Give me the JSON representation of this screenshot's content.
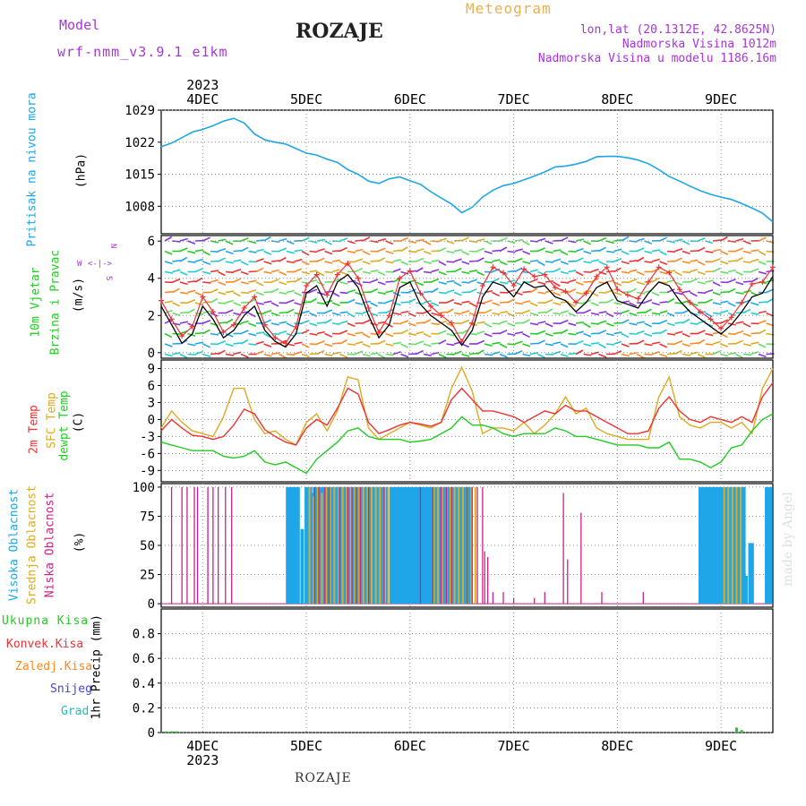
{
  "header": {
    "model_label": "Model",
    "model_name": "wrf-nmm_v3.9.1  e1km",
    "title": "ROZAJE",
    "meteogram_label": "Meteogram",
    "lonlat": "lon,lat (20.1312E, 42.8625N)",
    "elevation": "Nadmorska Visina 1012m",
    "model_elevation": "Nadmorska Visina u modelu 1186.16m"
  },
  "footer": {
    "station": "ROZAJE",
    "watermark": "made by Angel"
  },
  "colors": {
    "pressure": "#1fa6e8",
    "wind_label": "#22cc22",
    "t2m": "#ee3333",
    "sfc": "#ddaa22",
    "dewpt": "#22cc22",
    "high_cloud": "#1fa6e8",
    "mid_cloud": "#ddaa22",
    "low_cloud": "#cc2288",
    "total_precip": "#22cc22",
    "conv_precip": "#ee3333",
    "frz_precip": "#ff8822",
    "snow": "#4444dd",
    "grad": "#22bbbb",
    "purple": "#aa33dd",
    "orange": "#e8b050"
  },
  "chart_data": [
    {
      "panel": "pressure",
      "type": "line",
      "top_year": "2023",
      "top_days": [
        "4DEC",
        "5DEC",
        "6DEC",
        "7DEC",
        "8DEC",
        "9DEC"
      ],
      "ylabel_1": "Pritisak na nivou mora",
      "unit": "(hPa)",
      "ylim": [
        1002,
        1029
      ],
      "yticks": [
        "1008",
        "1015",
        "1022",
        "1029"
      ],
      "x": [
        3.6,
        3.7,
        3.8,
        3.9,
        4.0,
        4.1,
        4.2,
        4.3,
        4.4,
        4.5,
        4.6,
        4.7,
        4.8,
        4.9,
        5.0,
        5.1,
        5.2,
        5.3,
        5.4,
        5.5,
        5.6,
        5.7,
        5.8,
        5.9,
        6.0,
        6.1,
        6.2,
        6.3,
        6.4,
        6.5,
        6.6,
        6.7,
        6.8,
        6.9,
        7.0,
        7.1,
        7.2,
        7.3,
        7.4,
        7.5,
        7.6,
        7.7,
        7.8,
        7.9,
        8.0,
        8.1,
        8.2,
        8.3,
        8.4,
        8.5,
        8.6,
        8.7,
        8.8,
        8.9,
        9.0,
        9.1,
        9.2,
        9.3,
        9.4,
        9.5
      ],
      "values": [
        1021,
        1021.8,
        1023,
        1024.2,
        1024.8,
        1025.6,
        1026.6,
        1027.2,
        1026.2,
        1023.8,
        1022.5,
        1022,
        1021.6,
        1020.6,
        1019.6,
        1019.2,
        1018.3,
        1017.6,
        1016,
        1015,
        1013.5,
        1013,
        1014,
        1014.4,
        1013.6,
        1012.8,
        1011.2,
        1009.8,
        1008.5,
        1006.6,
        1007.8,
        1010,
        1011.5,
        1012.5,
        1013,
        1013.8,
        1014.6,
        1015.5,
        1016.6,
        1016.8,
        1017.2,
        1017.8,
        1018.8,
        1018.9,
        1018.9,
        1018.6,
        1018.1,
        1017.3,
        1016,
        1014.5,
        1013.5,
        1012.4,
        1011.4,
        1010.6,
        1010,
        1009.5,
        1008.6,
        1007.6,
        1006.5,
        1004.6
      ]
    },
    {
      "panel": "wind",
      "type": "line",
      "ylabel_1": "10m Vjetar",
      "ylabel_2": "Brzina i Pravac",
      "unit": "(m/s)",
      "compass": [
        "N",
        "W",
        "E",
        "S"
      ],
      "ylim": [
        -0.3,
        6.3
      ],
      "yticks": [
        "0",
        "2",
        "4",
        "6"
      ],
      "x": [
        3.6,
        3.7,
        3.8,
        3.9,
        4.0,
        4.1,
        4.2,
        4.3,
        4.4,
        4.5,
        4.6,
        4.7,
        4.8,
        4.9,
        5.0,
        5.1,
        5.2,
        5.3,
        5.4,
        5.5,
        5.6,
        5.7,
        5.8,
        5.9,
        6.0,
        6.1,
        6.2,
        6.3,
        6.4,
        6.5,
        6.6,
        6.7,
        6.8,
        6.9,
        7.0,
        7.1,
        7.2,
        7.3,
        7.4,
        7.5,
        7.6,
        7.7,
        7.8,
        7.9,
        8.0,
        8.1,
        8.2,
        8.3,
        8.4,
        8.5,
        8.6,
        8.7,
        8.8,
        8.9,
        9.0,
        9.1,
        9.2,
        9.3,
        9.4,
        9.5
      ],
      "series": [
        {
          "values": [
            2.5,
            1.5,
            0.5,
            1.0,
            2.5,
            1.8,
            0.8,
            1.2,
            2.0,
            2.5,
            1.2,
            0.6,
            0.3,
            1.0,
            3.2,
            3.6,
            2.5,
            3.8,
            4.2,
            3.5,
            2.0,
            0.8,
            1.5,
            3.5,
            3.8,
            2.6,
            2.0,
            1.6,
            1.2,
            0.4,
            1.2,
            3.0,
            3.8,
            3.6,
            3.0,
            3.8,
            3.5,
            3.6,
            3.0,
            2.8,
            2.2,
            2.7,
            3.5,
            3.8,
            2.8,
            2.6,
            2.4,
            3.2,
            3.8,
            3.6,
            2.8,
            2.2,
            1.8,
            1.4,
            1.0,
            1.5,
            2.2,
            3.0,
            3.2,
            4.1
          ]
        },
        {
          "values": [
            2.8,
            1.8,
            0.9,
            1.4,
            3.0,
            2.2,
            1.1,
            1.5,
            2.4,
            3.0,
            1.5,
            0.8,
            0.5,
            1.4,
            3.6,
            4.2,
            3.1,
            4.2,
            4.8,
            4.0,
            2.4,
            1.1,
            2.0,
            4.0,
            4.4,
            3.2,
            2.5,
            2.0,
            1.6,
            0.6,
            1.6,
            3.6,
            4.6,
            4.3,
            3.6,
            4.5,
            4.1,
            4.2,
            3.5,
            3.3,
            2.7,
            3.2,
            4.1,
            4.6,
            3.4,
            3.1,
            2.9,
            3.8,
            4.6,
            4.3,
            3.4,
            2.7,
            2.2,
            1.8,
            1.3,
            1.9,
            2.7,
            3.7,
            3.8,
            4.6
          ]
        }
      ]
    },
    {
      "panel": "temperature",
      "type": "line",
      "ylabel_1": "2m Temp",
      "ylabel_2": "SFC Temp",
      "ylabel_3": "dewpt Temp",
      "unit": "(C)",
      "ylim": [
        -11,
        10.5
      ],
      "yticks": [
        "-9",
        "-6",
        "-3",
        "0",
        "3",
        "6",
        "9"
      ],
      "x": [
        3.6,
        3.7,
        3.8,
        3.9,
        4.0,
        4.1,
        4.2,
        4.3,
        4.4,
        4.5,
        4.6,
        4.7,
        4.8,
        4.9,
        5.0,
        5.1,
        5.2,
        5.3,
        5.4,
        5.5,
        5.6,
        5.7,
        5.8,
        5.9,
        6.0,
        6.1,
        6.2,
        6.3,
        6.4,
        6.5,
        6.6,
        6.7,
        6.8,
        6.9,
        7.0,
        7.1,
        7.2,
        7.3,
        7.4,
        7.5,
        7.6,
        7.7,
        7.8,
        7.9,
        8.0,
        8.1,
        8.2,
        8.3,
        8.4,
        8.5,
        8.6,
        8.7,
        8.8,
        8.9,
        9.0,
        9.1,
        9.2,
        9.3,
        9.4,
        9.5
      ],
      "series": [
        {
          "name": "2m Temp",
          "values": [
            -2.0,
            0.0,
            -1.5,
            -2.8,
            -3.0,
            -3.5,
            -3.0,
            -1.0,
            1.8,
            1.0,
            -1.8,
            -3.0,
            -4.0,
            -4.5,
            -1.5,
            0.0,
            -1.0,
            2.0,
            5.5,
            4.5,
            -0.5,
            -2.5,
            -1.8,
            -1.0,
            -0.5,
            -0.8,
            -1.2,
            -0.5,
            3.5,
            5.5,
            3.5,
            1.5,
            1.5,
            1.0,
            0.5,
            -0.5,
            0.5,
            1.5,
            1.0,
            2.5,
            1.5,
            1.5,
            0.5,
            -0.5,
            -1.5,
            -2.5,
            -2.5,
            -2.0,
            2.0,
            4.0,
            1.5,
            0.0,
            -0.5,
            0.5,
            0.0,
            -0.5,
            0.5,
            -0.5,
            4.0,
            6.5
          ]
        },
        {
          "name": "SFC Temp",
          "values": [
            -1.5,
            1.5,
            -0.5,
            -2.0,
            -2.5,
            -3.0,
            0.5,
            5.5,
            5.5,
            0.0,
            -2.5,
            -2.0,
            -3.5,
            -4.5,
            -0.5,
            1.0,
            -2.0,
            1.5,
            7.5,
            7.0,
            -1.5,
            -3.5,
            -2.5,
            -1.5,
            -0.5,
            -1.0,
            -1.5,
            -0.5,
            5.5,
            9.2,
            5.0,
            -2.5,
            -1.5,
            -1.5,
            -2.0,
            -0.5,
            -2.5,
            -1.0,
            1.0,
            4.0,
            1.0,
            2.0,
            -1.5,
            -2.5,
            -3.0,
            -3.5,
            -3.5,
            -3.5,
            4.0,
            7.5,
            0.5,
            -1.0,
            -1.5,
            -0.5,
            -0.5,
            -1.5,
            -0.5,
            -2.5,
            5.5,
            9.0
          ]
        },
        {
          "name": "dewpt Temp",
          "values": [
            -4.0,
            -4.5,
            -5.0,
            -5.5,
            -5.5,
            -5.5,
            -6.5,
            -6.8,
            -6.5,
            -5.5,
            -7.5,
            -8.0,
            -7.5,
            -8.5,
            -9.5,
            -7.0,
            -5.5,
            -4.0,
            -2.0,
            -1.5,
            -3.0,
            -3.5,
            -3.5,
            -3.5,
            -4.0,
            -3.8,
            -3.5,
            -2.5,
            -1.5,
            0.5,
            -1.0,
            -1.0,
            -1.5,
            -2.5,
            -3.0,
            -2.5,
            -2.5,
            -2.5,
            -1.5,
            -2.0,
            -3.0,
            -3.0,
            -3.5,
            -4.0,
            -4.5,
            -4.5,
            -4.5,
            -5.0,
            -5.0,
            -4.0,
            -7.0,
            -7.0,
            -7.5,
            -8.5,
            -7.5,
            -5.0,
            -4.5,
            -2.0,
            0.0,
            1.0
          ]
        }
      ]
    },
    {
      "panel": "cloud",
      "type": "bar",
      "ylabel_1": "Visoka Oblacnost",
      "ylabel_2": "Srednja Oblacnost",
      "ylabel_3": "Niska Oblacnost",
      "unit": "(%)",
      "ylim": [
        -3,
        103
      ],
      "yticks": [
        "0",
        "25",
        "50",
        "75",
        "100"
      ],
      "series": [
        {
          "name": "Visoka Oblacnost",
          "x": [
            4.82,
            4.84,
            4.86,
            4.88,
            4.9,
            4.92,
            4.94,
            4.96,
            5.0,
            5.02,
            5.04,
            5.06,
            5.08,
            5.1,
            5.12,
            5.14,
            5.16,
            5.18,
            5.2,
            5.22,
            5.24,
            5.26,
            5.28,
            5.3,
            5.32,
            5.34,
            5.36,
            5.38,
            5.4,
            5.42,
            5.44,
            5.46,
            5.48,
            5.5,
            5.52,
            5.54,
            5.56,
            5.58,
            5.6,
            5.62,
            5.64,
            5.66,
            5.68,
            5.7,
            5.72,
            5.74,
            5.76,
            5.78,
            5.82,
            5.84,
            5.86,
            5.88,
            5.9,
            5.92,
            5.94,
            5.96,
            5.98,
            6.0,
            6.02,
            6.04,
            6.06,
            6.08,
            6.1,
            6.12,
            6.14,
            6.16,
            6.18,
            6.2,
            6.22,
            6.24,
            6.26,
            6.28,
            6.3,
            6.32,
            6.34,
            6.36,
            6.38,
            6.4,
            6.42,
            6.44,
            6.46,
            6.48,
            6.5,
            6.52,
            6.54,
            6.56,
            6.58,
            6.6,
            6.62,
            6.64,
            8.8,
            8.82,
            8.84,
            8.86,
            8.88,
            8.9,
            8.92,
            8.94,
            8.96,
            8.98,
            9.0,
            9.02,
            9.04,
            9.06,
            9.08,
            9.1,
            9.12,
            9.14,
            9.16,
            9.18,
            9.2,
            9.22,
            9.24,
            9.26,
            9.28,
            9.3,
            9.32,
            9.34,
            9.36,
            9.38,
            9.4,
            9.42,
            9.44,
            9.46,
            9.48
          ],
          "values": [
            100,
            100,
            100,
            100,
            100,
            100,
            0,
            64,
            100,
            100,
            100,
            95,
            100,
            100,
            100,
            100,
            100,
            100,
            100,
            100,
            100,
            100,
            100,
            100,
            100,
            100,
            100,
            100,
            100,
            100,
            100,
            100,
            100,
            100,
            100,
            100,
            100,
            100,
            100,
            100,
            100,
            100,
            100,
            100,
            100,
            100,
            0,
            100,
            100,
            100,
            100,
            100,
            100,
            100,
            100,
            100,
            100,
            100,
            100,
            100,
            100,
            100,
            100,
            100,
            100,
            100,
            100,
            100,
            100,
            100,
            100,
            100,
            100,
            100,
            100,
            100,
            100,
            100,
            100,
            100,
            100,
            100,
            100,
            100,
            100,
            100,
            100,
            0,
            0,
            0,
            100,
            100,
            100,
            100,
            100,
            100,
            100,
            100,
            100,
            100,
            100,
            100,
            100,
            100,
            100,
            100,
            100,
            100,
            100,
            100,
            100,
            100,
            24,
            0,
            52,
            52,
            0,
            0,
            0,
            0,
            0,
            0,
            100,
            100,
            100
          ]
        },
        {
          "name": "Srednja Oblacnost",
          "x": [
            5.03,
            5.07,
            5.11,
            5.15,
            5.19,
            5.23,
            5.27,
            5.31,
            5.35,
            5.39,
            5.43,
            5.47,
            5.51,
            5.55,
            5.59,
            5.63,
            5.67,
            5.71,
            5.75,
            5.79,
            6.23,
            6.27,
            6.31,
            6.35,
            6.39,
            6.43,
            6.47,
            6.51,
            6.55,
            6.59,
            6.63,
            9.03,
            9.07,
            9.11,
            9.15,
            9.19
          ],
          "values": [
            100,
            92,
            100,
            95,
            100,
            100,
            100,
            100,
            100,
            100,
            100,
            100,
            100,
            100,
            100,
            100,
            100,
            100,
            100,
            100,
            100,
            100,
            100,
            100,
            100,
            100,
            100,
            100,
            100,
            100,
            100,
            100,
            100,
            100,
            100,
            100
          ]
        },
        {
          "name": "Niska Oblacnost",
          "x": [
            3.7,
            3.8,
            3.85,
            3.92,
            3.95,
            4.05,
            4.1,
            4.15,
            4.22,
            4.28,
            5.08,
            5.12,
            5.18,
            5.22,
            5.32,
            5.4,
            5.44,
            5.48,
            5.52,
            5.6,
            5.75,
            6.1,
            6.22,
            6.3,
            6.35,
            6.4,
            6.55,
            6.6,
            6.65,
            6.7,
            6.72,
            6.75,
            6.8,
            6.9,
            7.0,
            7.2,
            7.3,
            7.48,
            7.52,
            7.65,
            7.85,
            8.25
          ],
          "values": [
            100,
            100,
            100,
            100,
            100,
            100,
            100,
            100,
            100,
            100,
            100,
            100,
            100,
            100,
            100,
            100,
            100,
            100,
            100,
            100,
            100,
            100,
            100,
            100,
            100,
            100,
            100,
            100,
            100,
            100,
            45,
            40,
            10,
            10,
            5,
            5,
            10,
            95,
            38,
            78,
            10,
            10
          ]
        }
      ]
    },
    {
      "panel": "precip",
      "type": "bar",
      "bottom_days": [
        "4DEC",
        "5DEC",
        "6DEC",
        "7DEC",
        "8DEC",
        "9DEC"
      ],
      "bottom_year": "2023",
      "ylabel_1": "Ukupna Kisa",
      "ylabel_2": "Konvek.Kisa",
      "ylabel_3": "Zaledj.Kisa",
      "ylabel_4": "Snijeg",
      "ylabel_5": "Grad",
      "ylabel_6": "1hr Precip (mm)",
      "ylim": [
        0,
        1.0
      ],
      "yticks": [
        "0",
        "0.2",
        "0.4",
        "0.6",
        "0.8"
      ],
      "x": [
        3.65,
        3.7,
        3.75,
        9.15,
        9.2
      ],
      "values": [
        0.01,
        0.01,
        0.01,
        0.04,
        0.02
      ]
    }
  ]
}
